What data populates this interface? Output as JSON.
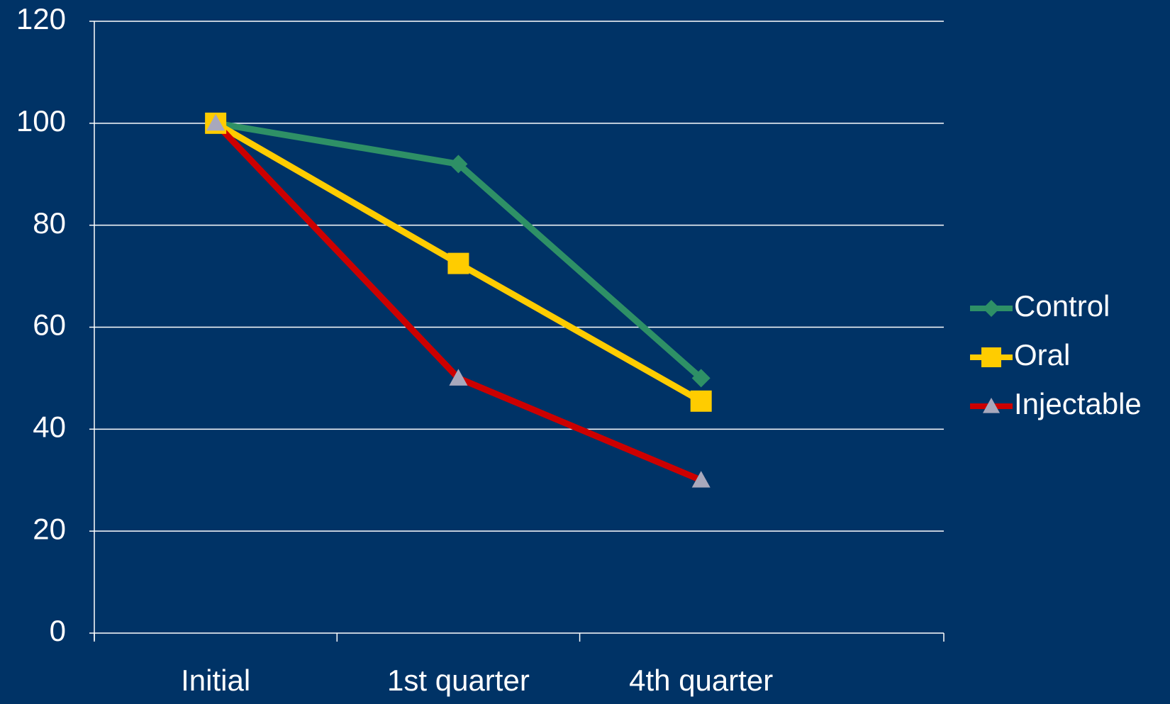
{
  "chart_data": {
    "type": "line",
    "categories": [
      "Initial",
      "1st quarter",
      "4th quarter"
    ],
    "series": [
      {
        "name": "Control",
        "color": "#2e9066",
        "marker": "diamond",
        "marker_color": "#2e9066",
        "values": [
          100,
          92,
          50
        ]
      },
      {
        "name": "Oral",
        "color": "#ffcc00",
        "marker": "square",
        "marker_color": "#ffcc00",
        "values": [
          100,
          72.5,
          45.5
        ]
      },
      {
        "name": "Injectable",
        "color": "#cc0000",
        "marker": "triangle",
        "marker_color": "#a8a8bc",
        "values": [
          100,
          50,
          30
        ]
      }
    ],
    "ylim": [
      0,
      120
    ],
    "yticks": [
      0,
      20,
      40,
      60,
      80,
      100,
      120
    ],
    "grid": true,
    "legend": "right"
  }
}
